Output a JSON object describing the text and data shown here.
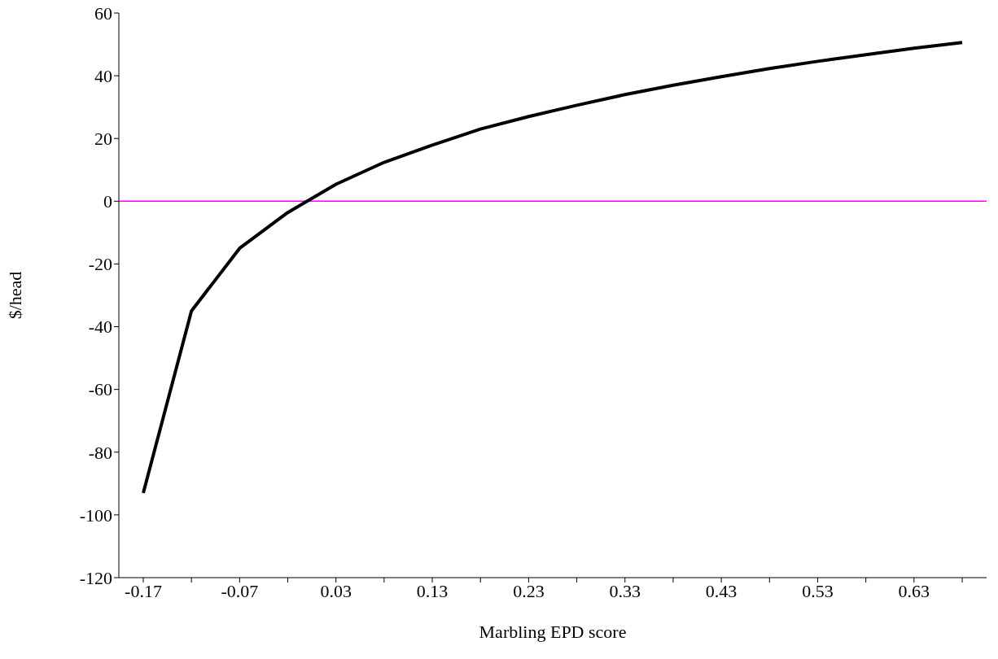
{
  "chart_data": {
    "type": "line",
    "xlabel": "Marbling EPD score",
    "ylabel": "$/head",
    "categories": [
      "-0.17",
      null,
      "-0.07",
      null,
      "0.03",
      null,
      "0.13",
      null,
      "0.23",
      null,
      "0.33",
      null,
      "0.43",
      null,
      "0.53",
      null,
      "0.63",
      null
    ],
    "series": [
      {
        "color": "#000000",
        "values": [
          -93,
          -35,
          -15,
          -3.6,
          5.4,
          12.4,
          17.9,
          23,
          27,
          30.6,
          34,
          37,
          39.7,
          42.3,
          44.6,
          46.7,
          48.8,
          50.6
        ]
      }
    ],
    "ylim": [
      -120,
      60
    ],
    "yticks": [
      -120,
      -100,
      -80,
      -60,
      -40,
      -20,
      0,
      20,
      40,
      60
    ],
    "ref_lines": [
      {
        "axis": "y",
        "value": 0,
        "color": "#ff00ff"
      }
    ],
    "grid": false,
    "legend": false,
    "marker": "none",
    "line_style": "solid"
  }
}
